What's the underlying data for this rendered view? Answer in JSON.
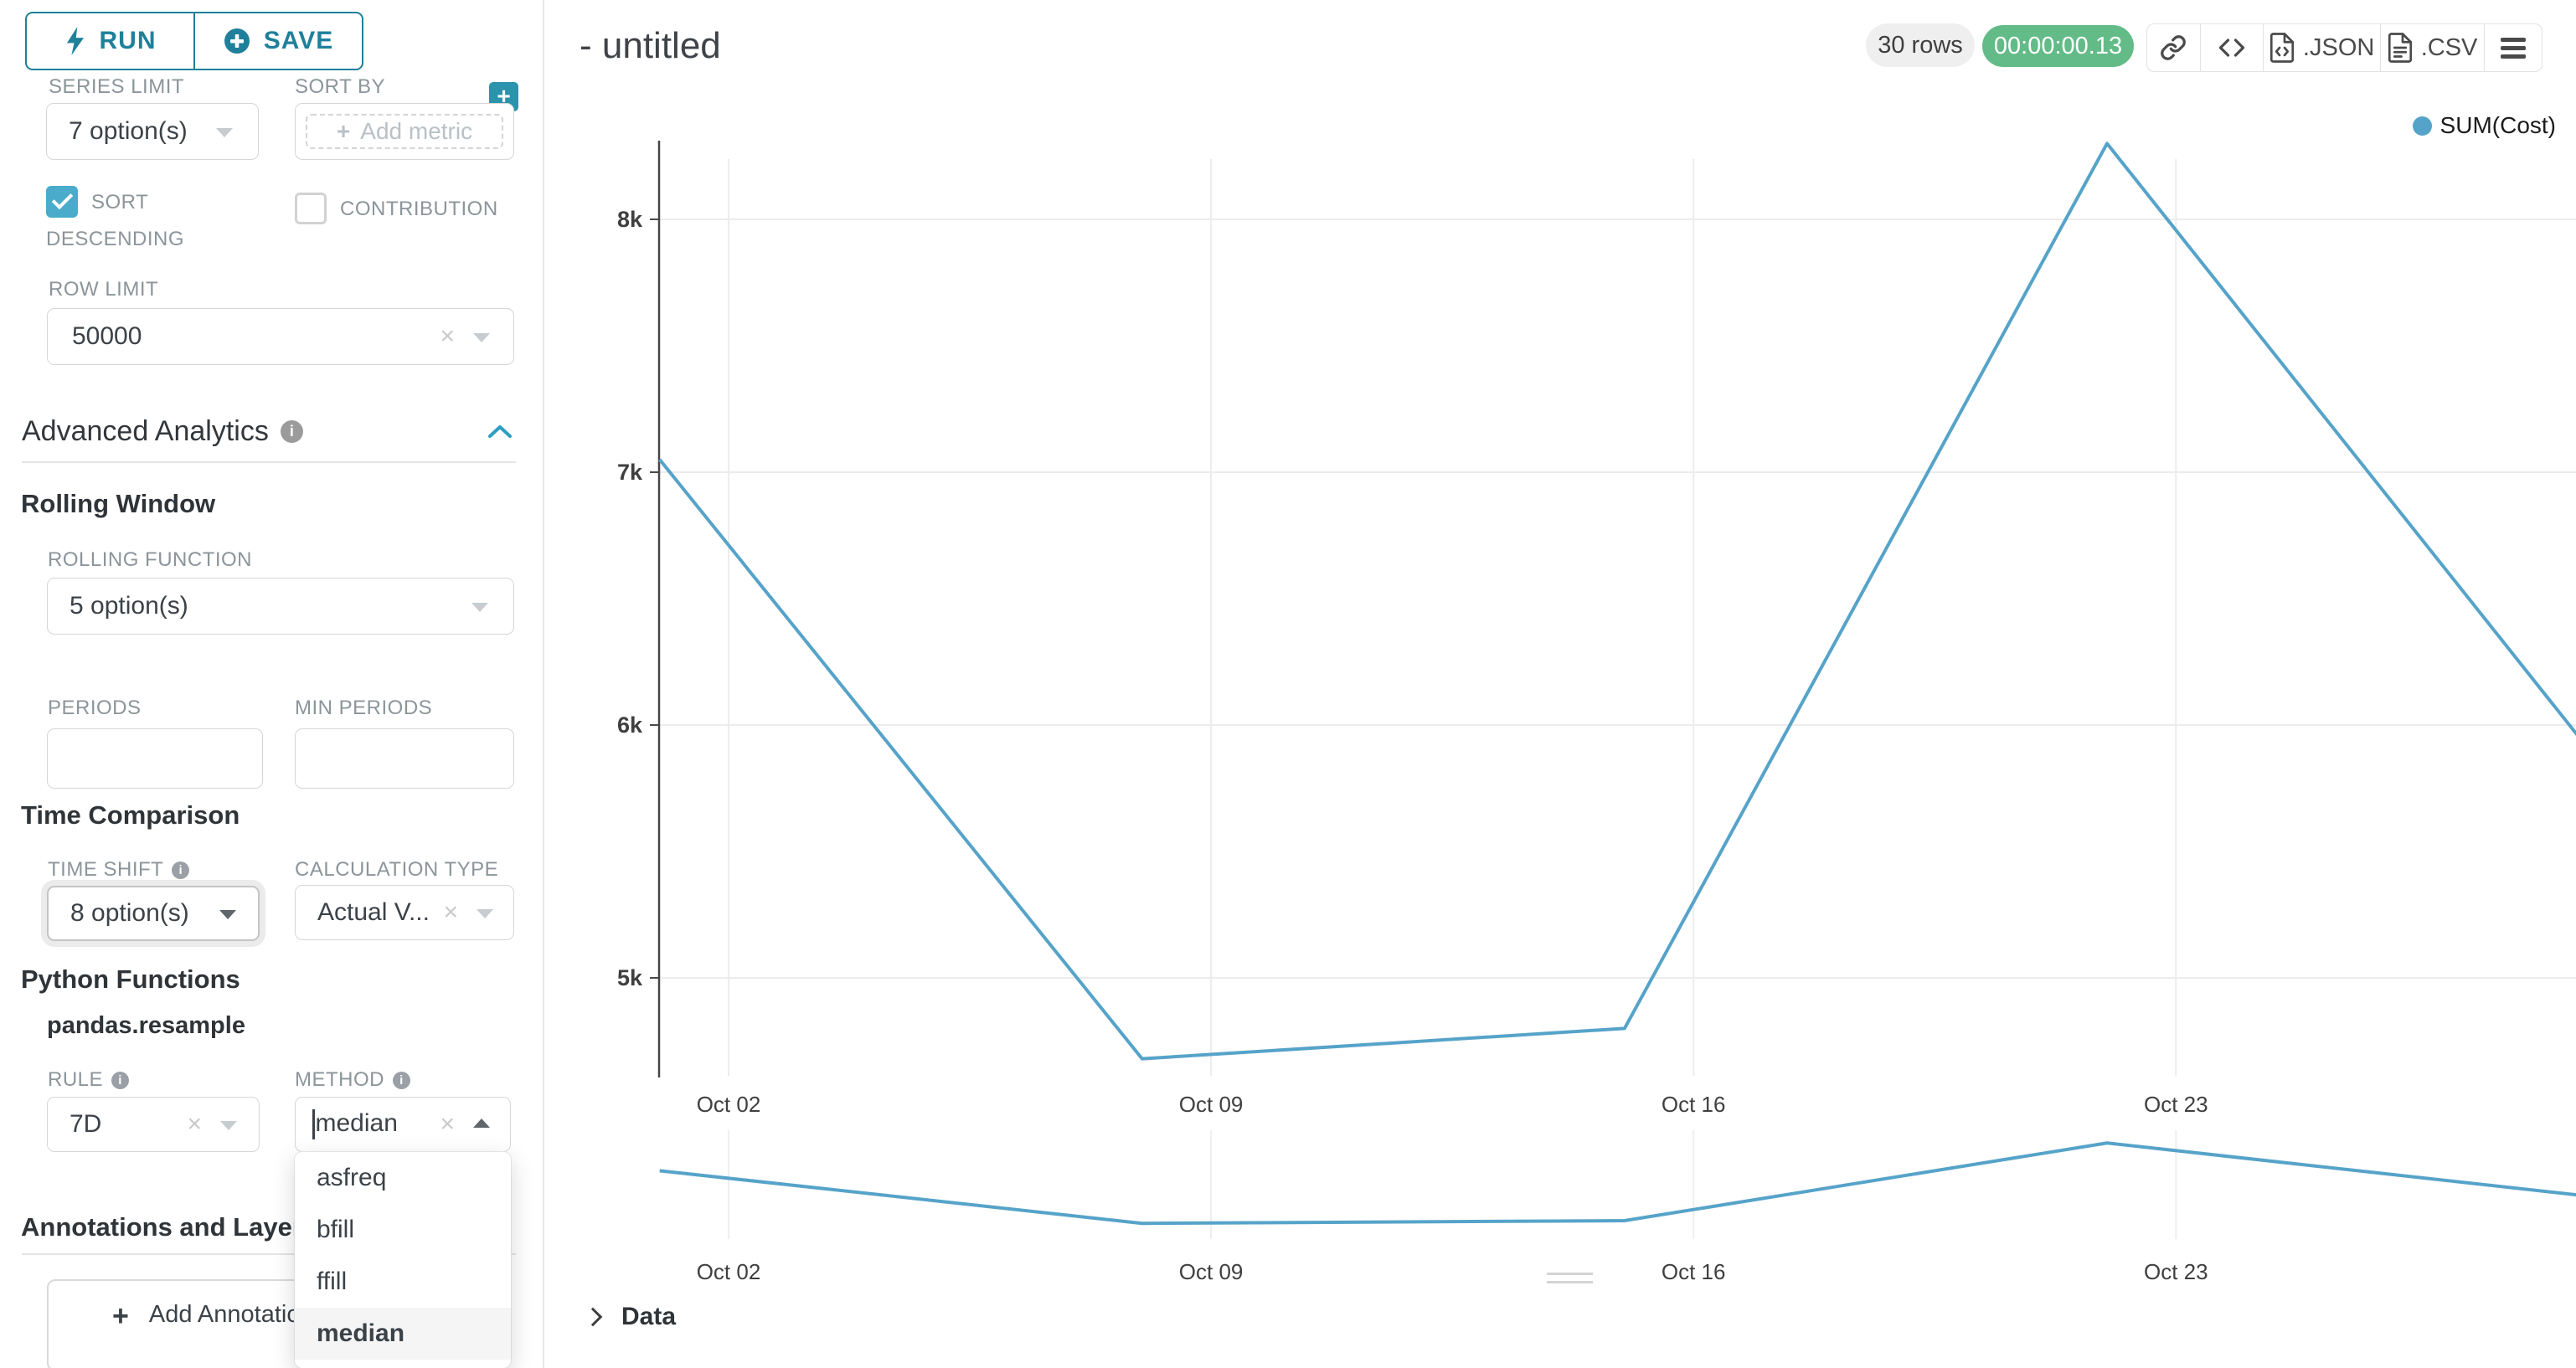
{
  "colors": {
    "accent_teal": "#1f809b",
    "button_teal": "#2d93ad",
    "checkbox_teal": "#4aabca",
    "timer_green": "#63bb87",
    "line_blue": "#56a3c9",
    "gridline": "#ececec",
    "label_gray": "#8b959a"
  },
  "icons": {
    "run_button": "lightning-bolt",
    "save_button": "plus-circle",
    "sort_by_add": "plus-square",
    "info": "info-circle",
    "select_caret": "caret-down",
    "combo_open": "caret-up",
    "clear": "x",
    "section_collapse": "chevron-up",
    "share": "link-chain",
    "embed": "code-brackets",
    "json_export": "file-code",
    "csv_export": "file-text",
    "more_menu": "hamburger",
    "data_expand": "chevron-right",
    "panel_resize": "drag-handle"
  },
  "sidebar": {
    "run_label": "RUN",
    "save_label": "SAVE",
    "series_limit": {
      "label": "SERIES LIMIT",
      "value": "7 option(s)"
    },
    "sort_by": {
      "label": "SORT BY",
      "placeholder": "Add metric"
    },
    "sort_descending": {
      "label": "SORT DESCENDING",
      "checked": true
    },
    "contribution": {
      "label": "CONTRIBUTION",
      "checked": false
    },
    "row_limit": {
      "label": "ROW LIMIT",
      "value": "50000"
    },
    "advanced_analytics_title": "Advanced Analytics",
    "rolling_window": {
      "title": "Rolling Window",
      "rolling_function": {
        "label": "ROLLING FUNCTION",
        "value": "5 option(s)"
      },
      "periods": {
        "label": "PERIODS",
        "value": ""
      },
      "min_periods": {
        "label": "MIN PERIODS",
        "value": ""
      }
    },
    "time_comparison": {
      "title": "Time Comparison",
      "time_shift": {
        "label": "TIME SHIFT",
        "value": "8 option(s)"
      },
      "calculation_type": {
        "label": "CALCULATION TYPE",
        "value": "Actual V..."
      }
    },
    "python_functions": {
      "title": "Python Functions",
      "subtitle": "pandas.resample",
      "rule": {
        "label": "RULE",
        "value": "7D"
      },
      "method": {
        "label": "METHOD",
        "value": "median",
        "options": [
          "asfreq",
          "bfill",
          "ffill",
          "median"
        ],
        "selected": "median"
      }
    },
    "annotations": {
      "title": "Annotations and Layers",
      "add_button_label": "Add Annotation Layer"
    }
  },
  "header": {
    "title": "- untitled",
    "rows_badge": "30 rows",
    "timer_badge": "00:00:00.13",
    "toolbar": {
      "json_label": ".JSON",
      "csv_label": ".CSV"
    }
  },
  "chart_data": {
    "type": "line",
    "legend": {
      "label": "SUM(Cost)",
      "position": "top-right"
    },
    "series": [
      {
        "name": "SUM(Cost)",
        "color": "#56a3c9",
        "x": [
          "Oct 01",
          "Oct 08",
          "Oct 15",
          "Oct 22",
          "Oct 29"
        ],
        "values": [
          7050,
          4680,
          4800,
          8300,
          5900
        ]
      }
    ],
    "x_day_offsets": [
      -1,
      6,
      13,
      20,
      27
    ],
    "x_tick_labels": [
      "Oct 02",
      "Oct 09",
      "Oct 16",
      "Oct 23"
    ],
    "y_ticks": [
      {
        "label": "5k",
        "value": 5000
      },
      {
        "label": "6k",
        "value": 6000
      },
      {
        "label": "7k",
        "value": 7000
      },
      {
        "label": "8k",
        "value": 8000
      }
    ],
    "ylim": [
      4600,
      8350
    ],
    "grid": true,
    "has_minimap": true
  },
  "data_panel": {
    "title": "Data"
  }
}
